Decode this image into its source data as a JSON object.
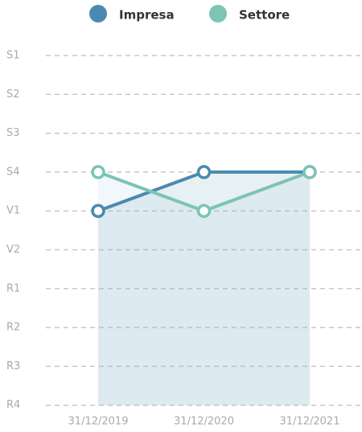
{
  "chart_data": {
    "type": "line",
    "categories": [
      "31/12/2019",
      "31/12/2020",
      "31/12/2021"
    ],
    "y_categories": [
      "S1",
      "S2",
      "S3",
      "S4",
      "V1",
      "V2",
      "R1",
      "R2",
      "R3",
      "R4"
    ],
    "series": [
      {
        "name": "Impresa",
        "color": "#4a8ab0",
        "values": [
          "V1",
          "S4",
          "S4"
        ]
      },
      {
        "name": "Settore",
        "color": "#7cc4b4",
        "values": [
          "S4",
          "V1",
          "S4"
        ]
      }
    ],
    "grid": true,
    "legend": "top"
  }
}
